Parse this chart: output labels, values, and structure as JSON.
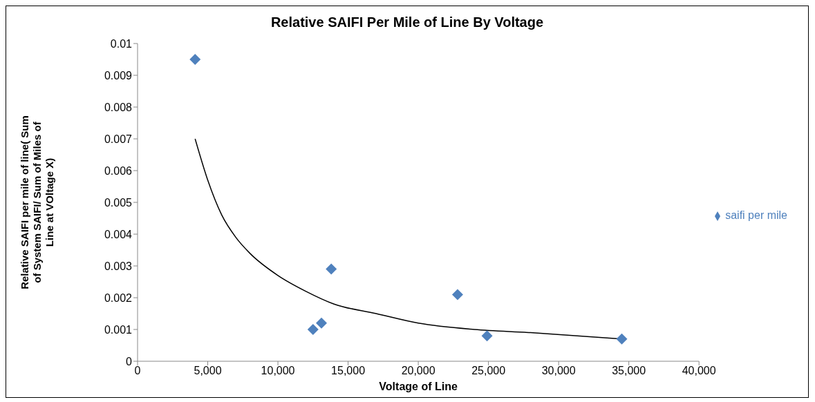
{
  "chart_data": {
    "type": "scatter",
    "title": "Relative SAIFI Per Mile of Line By Voltage",
    "xlabel": "Voltage of Line",
    "ylabel": "Relative SAIFI per mile of line( Sum of System SAIFI/ Sum of Miles of Line at VOltage X)",
    "xlim": [
      0,
      40000
    ],
    "xticks": [
      {
        "value": 0,
        "label": "0"
      },
      {
        "value": 5000,
        "label": "5,000"
      },
      {
        "value": 10000,
        "label": "10,000"
      },
      {
        "value": 15000,
        "label": "15,000"
      },
      {
        "value": 20000,
        "label": "20,000"
      },
      {
        "value": 25000,
        "label": "25,000"
      },
      {
        "value": 30000,
        "label": "30,000"
      },
      {
        "value": 35000,
        "label": "35,000"
      },
      {
        "value": 40000,
        "label": "40,000"
      }
    ],
    "ylim": [
      0,
      0.01
    ],
    "yticks": [
      0,
      0.001,
      0.002,
      0.003,
      0.004,
      0.005,
      0.006,
      0.007,
      0.008,
      0.009,
      0.01
    ],
    "grid": false,
    "legend": "right",
    "marker": "diamond",
    "series": [
      {
        "name": "saifi per mile",
        "color": "#4f81bd",
        "x": [
          4100,
          12500,
          13100,
          13800,
          22800,
          24900,
          34500
        ],
        "values": [
          0.0095,
          0.001,
          0.0012,
          0.0029,
          0.0021,
          0.0008,
          0.0007
        ]
      },
      {
        "type": "line",
        "marker": "none",
        "color": "#000000",
        "x": [
          4100,
          5000,
          6000,
          7000,
          8000,
          10000,
          12000,
          14000,
          17000,
          20000,
          24000,
          28000,
          34500
        ],
        "values": [
          0.007,
          0.0057,
          0.0046,
          0.0039,
          0.0034,
          0.0027,
          0.0022,
          0.0018,
          0.0015,
          0.0012,
          0.001,
          0.0009,
          0.0007
        ]
      }
    ]
  }
}
